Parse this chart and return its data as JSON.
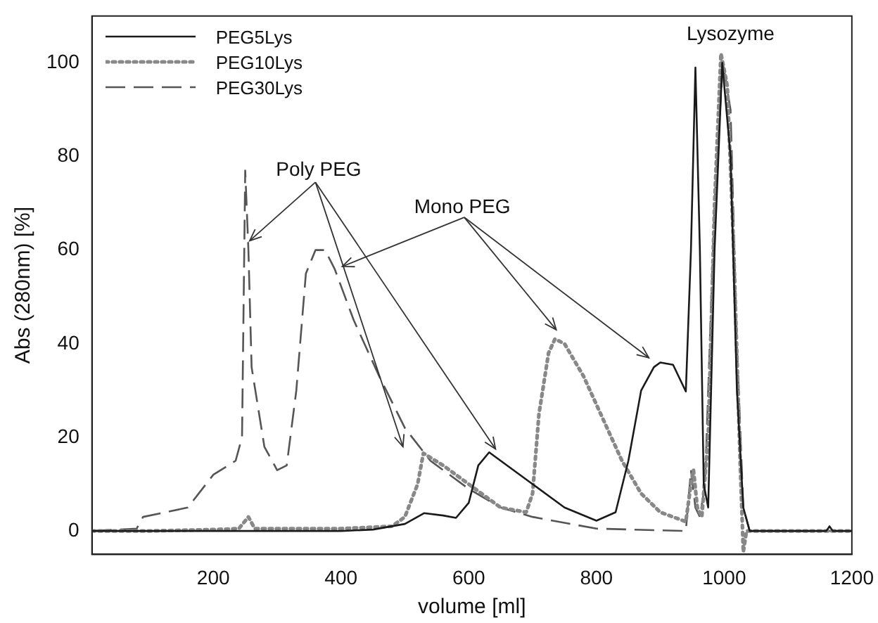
{
  "chart_data": {
    "type": "line",
    "xlabel": "volume [ml]",
    "ylabel": "Abs (280nm) [%]",
    "xlim": [
      10,
      1200
    ],
    "ylim": [
      -5,
      110
    ],
    "xticks": [
      200,
      400,
      600,
      800,
      1000,
      1200
    ],
    "yticks": [
      0,
      20,
      40,
      60,
      80,
      100
    ],
    "grid": false,
    "legend": "top left",
    "marker": "none",
    "annotations": [
      {
        "text": "Poly PEG",
        "x": 257,
        "y": 62
      },
      "Mono PEG",
      "Lysozyme"
    ],
    "series": [
      {
        "name": "PEG5Lys",
        "color": "#1a1a1a",
        "line_style": "solid",
        "x": [
          10,
          100,
          200,
          300,
          400,
          450,
          500,
          530,
          560,
          580,
          600,
          615,
          632,
          650,
          700,
          750,
          800,
          830,
          850,
          870,
          890,
          900,
          920,
          940,
          948,
          955,
          962,
          968,
          975,
          985,
          997,
          1010,
          1020,
          1030,
          1040,
          1100,
          1160,
          1165,
          1170,
          1200
        ],
        "values": [
          0,
          0,
          0,
          0,
          0,
          0.3,
          1.5,
          3.8,
          3.3,
          2.8,
          6,
          14,
          16.8,
          15,
          10,
          5,
          2.2,
          4,
          15,
          30,
          35,
          36,
          35.5,
          29.8,
          60,
          99,
          60,
          10,
          5,
          60,
          100,
          80,
          30,
          5,
          0,
          0,
          0,
          1,
          0,
          0
        ]
      },
      {
        "name": "PEG10Lys",
        "color": "#888888",
        "line_style": "dotted",
        "x": [
          10,
          100,
          200,
          240,
          255,
          265,
          300,
          400,
          480,
          500,
          520,
          529,
          560,
          600,
          650,
          690,
          700,
          710,
          725,
          735,
          750,
          780,
          800,
          840,
          870,
          900,
          940,
          948,
          952,
          958,
          965,
          975,
          985,
          995,
          1005,
          1015,
          1025,
          1030,
          1035,
          1100,
          1200
        ],
        "values": [
          0,
          0,
          0.3,
          0.5,
          3,
          0.5,
          0.5,
          0.5,
          1,
          3,
          10,
          16.6,
          14,
          10,
          5,
          4,
          8,
          25,
          38,
          41,
          40,
          33,
          27,
          15,
          8,
          4,
          2,
          10,
          13,
          5,
          3,
          20,
          70,
          102,
          95,
          60,
          15,
          -4.5,
          0,
          0,
          0
        ]
      },
      {
        "name": "PEG30Lys",
        "color": "#555555",
        "line_style": "dashed",
        "x": [
          10,
          80,
          90,
          160,
          200,
          235,
          245,
          250,
          255,
          260,
          280,
          300,
          315,
          330,
          345,
          360,
          375,
          390,
          420,
          460,
          500,
          540,
          600,
          650,
          700,
          800,
          940,
          948,
          955,
          962,
          970,
          985,
          998,
          1010,
          1020,
          1030,
          1040,
          1200
        ],
        "values": [
          0,
          0.5,
          3,
          5,
          12,
          15,
          20,
          77,
          60,
          35,
          18,
          13,
          14,
          30,
          55,
          60,
          60,
          56,
          45,
          33,
          22,
          15,
          9,
          5,
          3,
          0.5,
          0,
          13,
          5,
          3,
          10,
          70,
          100,
          90,
          40,
          5,
          0,
          0
        ]
      }
    ]
  }
}
